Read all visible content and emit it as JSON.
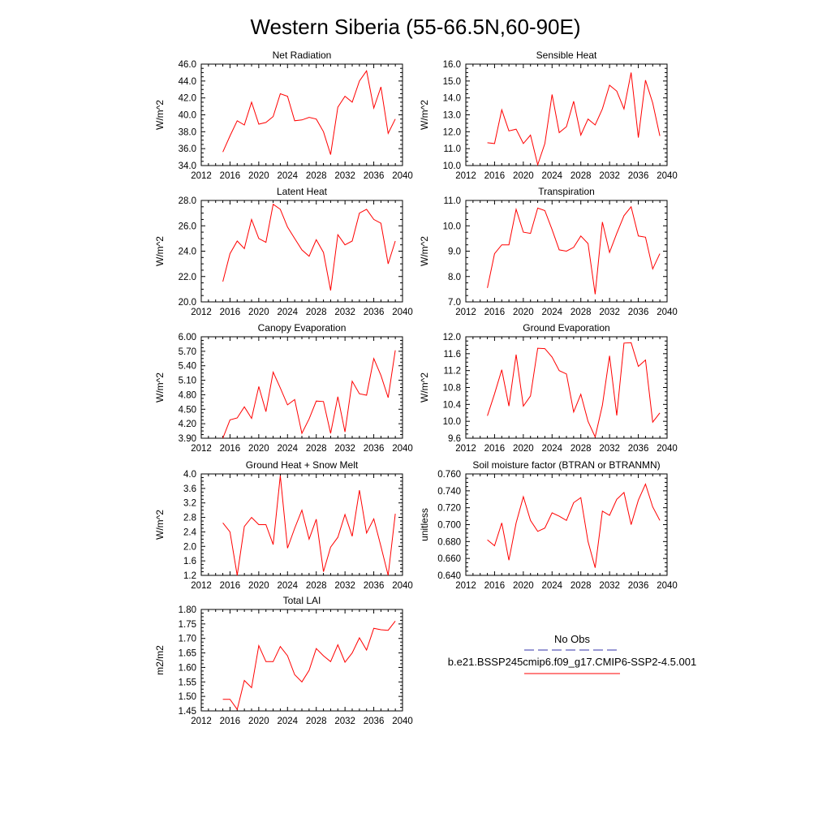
{
  "title": "Western Siberia (55-66.5N,60-90E)",
  "legend": {
    "obs_label": "No Obs",
    "obs_color": "#3333aa",
    "model_label": "b.e21.BSSP245cmip6.f09_g17.CMIP6-SSP2-4.5.001",
    "model_color": "#ff0000"
  },
  "chart_data": [
    {
      "type": "line",
      "title": "Net Radiation",
      "ylabel": "W/m^2",
      "xlim": [
        2012,
        2040
      ],
      "ylim": [
        34.0,
        46.0
      ],
      "xticks": [
        "2012",
        "2016",
        "2020",
        "2024",
        "2028",
        "2032",
        "2036",
        "2040"
      ],
      "yticks": [
        "34.0",
        "36.0",
        "38.0",
        "40.0",
        "42.0",
        "44.0",
        "46.0"
      ],
      "x": [
        2015,
        2016,
        2017,
        2018,
        2019,
        2020,
        2021,
        2022,
        2023,
        2024,
        2025,
        2026,
        2027,
        2028,
        2029,
        2030,
        2031,
        2032,
        2033,
        2034,
        2035,
        2036,
        2037,
        2038,
        2039
      ],
      "values": [
        35.6,
        37.5,
        39.3,
        38.8,
        41.5,
        38.9,
        39.1,
        39.8,
        42.5,
        42.2,
        39.3,
        39.4,
        39.7,
        39.5,
        38.0,
        35.3,
        40.9,
        42.2,
        41.5,
        44.0,
        45.2,
        40.8,
        43.3,
        37.8,
        39.5
      ]
    },
    {
      "type": "line",
      "title": "Sensible Heat",
      "ylabel": "W/m^2",
      "xlim": [
        2012,
        2040
      ],
      "ylim": [
        10.0,
        16.0
      ],
      "xticks": [
        "2012",
        "2016",
        "2020",
        "2024",
        "2028",
        "2032",
        "2036",
        "2040"
      ],
      "yticks": [
        "10.0",
        "11.0",
        "12.0",
        "13.0",
        "14.0",
        "15.0",
        "16.0"
      ],
      "x": [
        2015,
        2016,
        2017,
        2018,
        2019,
        2020,
        2021,
        2022,
        2023,
        2024,
        2025,
        2026,
        2027,
        2028,
        2029,
        2030,
        2031,
        2032,
        2033,
        2034,
        2035,
        2036,
        2037,
        2038,
        2039
      ],
      "values": [
        11.35,
        11.3,
        13.3,
        12.05,
        12.15,
        11.3,
        11.8,
        10.05,
        11.3,
        14.2,
        11.95,
        12.3,
        13.8,
        11.8,
        12.75,
        12.4,
        13.35,
        14.75,
        14.4,
        13.35,
        15.5,
        11.65,
        15.05,
        13.7,
        11.75
      ]
    },
    {
      "type": "line",
      "title": "Latent Heat",
      "ylabel": "W/m^2",
      "xlim": [
        2012,
        2040
      ],
      "ylim": [
        20.0,
        28.0
      ],
      "xticks": [
        "2012",
        "2016",
        "2020",
        "2024",
        "2028",
        "2032",
        "2036",
        "2040"
      ],
      "yticks": [
        "20.0",
        "22.0",
        "24.0",
        "26.0",
        "28.0"
      ],
      "x": [
        2015,
        2016,
        2017,
        2018,
        2019,
        2020,
        2021,
        2022,
        2023,
        2024,
        2025,
        2026,
        2027,
        2028,
        2029,
        2030,
        2031,
        2032,
        2033,
        2034,
        2035,
        2036,
        2037,
        2038,
        2039
      ],
      "values": [
        21.6,
        23.8,
        24.8,
        24.2,
        26.5,
        25.0,
        24.7,
        27.7,
        27.3,
        25.9,
        25.0,
        24.1,
        23.6,
        24.9,
        23.9,
        20.9,
        25.3,
        24.5,
        24.8,
        27.0,
        27.3,
        26.5,
        26.2,
        23.0,
        24.8
      ]
    },
    {
      "type": "line",
      "title": "Transpiration",
      "ylabel": "W/m^2",
      "xlim": [
        2012,
        2040
      ],
      "ylim": [
        7.0,
        11.0
      ],
      "xticks": [
        "2012",
        "2016",
        "2020",
        "2024",
        "2028",
        "2032",
        "2036",
        "2040"
      ],
      "yticks": [
        "7.0",
        "8.0",
        "9.0",
        "10.0",
        "11.0"
      ],
      "x": [
        2015,
        2016,
        2017,
        2018,
        2019,
        2020,
        2021,
        2022,
        2023,
        2024,
        2025,
        2026,
        2027,
        2028,
        2029,
        2030,
        2031,
        2032,
        2033,
        2034,
        2035,
        2036,
        2037,
        2038,
        2039
      ],
      "values": [
        7.55,
        8.9,
        9.25,
        9.25,
        10.65,
        9.75,
        9.7,
        10.7,
        10.6,
        9.85,
        9.05,
        9.0,
        9.15,
        9.6,
        9.3,
        7.3,
        10.15,
        8.95,
        9.7,
        10.4,
        10.75,
        9.6,
        9.55,
        8.3,
        8.9
      ]
    },
    {
      "type": "line",
      "title": "Canopy Evaporation",
      "ylabel": "W/m^2",
      "xlim": [
        2012,
        2040
      ],
      "ylim": [
        3.9,
        6.0
      ],
      "xticks": [
        "2012",
        "2016",
        "2020",
        "2024",
        "2028",
        "2032",
        "2036",
        "2040"
      ],
      "yticks": [
        "3.90",
        "4.20",
        "4.50",
        "4.80",
        "5.10",
        "5.40",
        "5.70",
        "6.00"
      ],
      "x": [
        2015,
        2016,
        2017,
        2018,
        2019,
        2020,
        2021,
        2022,
        2023,
        2024,
        2025,
        2026,
        2027,
        2028,
        2029,
        2030,
        2031,
        2032,
        2033,
        2034,
        2035,
        2036,
        2037,
        2038,
        2039
      ],
      "values": [
        3.9,
        4.28,
        4.32,
        4.55,
        4.31,
        4.97,
        4.45,
        5.27,
        4.94,
        4.59,
        4.7,
        4.0,
        4.3,
        4.67,
        4.66,
        4.0,
        4.76,
        4.03,
        5.08,
        4.82,
        4.79,
        5.55,
        5.2,
        4.74,
        5.72
      ]
    },
    {
      "type": "line",
      "title": "Ground Evaporation",
      "ylabel": "W/m^2",
      "xlim": [
        2012,
        2040
      ],
      "ylim": [
        9.6,
        12.0
      ],
      "xticks": [
        "2012",
        "2016",
        "2020",
        "2024",
        "2028",
        "2032",
        "2036",
        "2040"
      ],
      "yticks": [
        "9.6",
        "10.0",
        "10.4",
        "10.8",
        "11.2",
        "11.6",
        "12.0"
      ],
      "x": [
        2015,
        2016,
        2017,
        2018,
        2019,
        2020,
        2021,
        2022,
        2023,
        2024,
        2025,
        2026,
        2027,
        2028,
        2029,
        2030,
        2031,
        2032,
        2033,
        2034,
        2035,
        2036,
        2037,
        2038,
        2039
      ],
      "values": [
        10.13,
        10.65,
        11.22,
        10.36,
        11.58,
        10.36,
        10.6,
        11.73,
        11.72,
        11.52,
        11.2,
        11.12,
        10.22,
        10.64,
        10.0,
        9.63,
        10.38,
        11.55,
        10.14,
        11.85,
        11.86,
        11.3,
        11.45,
        9.98,
        10.2
      ]
    },
    {
      "type": "line",
      "title": "Ground Heat + Snow Melt",
      "ylabel": "W/m^2",
      "xlim": [
        2012,
        2040
      ],
      "ylim": [
        1.2,
        4.0
      ],
      "xticks": [
        "2012",
        "2016",
        "2020",
        "2024",
        "2028",
        "2032",
        "2036",
        "2040"
      ],
      "yticks": [
        "1.2",
        "1.6",
        "2.0",
        "2.4",
        "2.8",
        "3.2",
        "3.6",
        "4.0"
      ],
      "x": [
        2015,
        2016,
        2017,
        2018,
        2019,
        2020,
        2021,
        2022,
        2023,
        2024,
        2025,
        2026,
        2027,
        2028,
        2029,
        2030,
        2031,
        2032,
        2033,
        2034,
        2035,
        2036,
        2037,
        2038,
        2039
      ],
      "values": [
        2.65,
        2.4,
        1.2,
        2.55,
        2.8,
        2.6,
        2.6,
        2.05,
        3.95,
        1.95,
        2.5,
        3.0,
        2.2,
        2.75,
        1.3,
        1.98,
        2.25,
        2.88,
        2.28,
        3.55,
        2.37,
        2.76,
        2.0,
        1.2,
        2.9
      ]
    },
    {
      "type": "line",
      "title": "Soil moisture factor (BTRAN or BTRANMN)",
      "ylabel": "unitless",
      "xlim": [
        2012,
        2040
      ],
      "ylim": [
        0.64,
        0.76
      ],
      "xticks": [
        "2012",
        "2016",
        "2020",
        "2024",
        "2028",
        "2032",
        "2036",
        "2040"
      ],
      "yticks": [
        "0.640",
        "0.660",
        "0.680",
        "0.700",
        "0.720",
        "0.740",
        "0.760"
      ],
      "x": [
        2015,
        2016,
        2017,
        2018,
        2019,
        2020,
        2021,
        2022,
        2023,
        2024,
        2025,
        2026,
        2027,
        2028,
        2029,
        2030,
        2031,
        2032,
        2033,
        2034,
        2035,
        2036,
        2037,
        2038,
        2039
      ],
      "values": [
        0.682,
        0.675,
        0.702,
        0.658,
        0.702,
        0.733,
        0.705,
        0.692,
        0.696,
        0.714,
        0.71,
        0.705,
        0.726,
        0.732,
        0.68,
        0.649,
        0.716,
        0.711,
        0.73,
        0.738,
        0.7,
        0.729,
        0.748,
        0.721,
        0.705
      ]
    },
    {
      "type": "line",
      "title": "Total LAI",
      "ylabel": "m2/m2",
      "xlim": [
        2012,
        2040
      ],
      "ylim": [
        1.45,
        1.8
      ],
      "xticks": [
        "2012",
        "2016",
        "2020",
        "2024",
        "2028",
        "2032",
        "2036",
        "2040"
      ],
      "yticks": [
        "1.45",
        "1.50",
        "1.55",
        "1.60",
        "1.65",
        "1.70",
        "1.75",
        "1.80"
      ],
      "x": [
        2015,
        2016,
        2017,
        2018,
        2019,
        2020,
        2021,
        2022,
        2023,
        2024,
        2025,
        2026,
        2027,
        2028,
        2029,
        2030,
        2031,
        2032,
        2033,
        2034,
        2035,
        2036,
        2037,
        2038,
        2039
      ],
      "values": [
        1.49,
        1.49,
        1.455,
        1.555,
        1.53,
        1.675,
        1.62,
        1.62,
        1.672,
        1.64,
        1.575,
        1.55,
        1.59,
        1.665,
        1.64,
        1.62,
        1.678,
        1.618,
        1.65,
        1.702,
        1.66,
        1.735,
        1.73,
        1.728,
        1.76
      ]
    }
  ]
}
